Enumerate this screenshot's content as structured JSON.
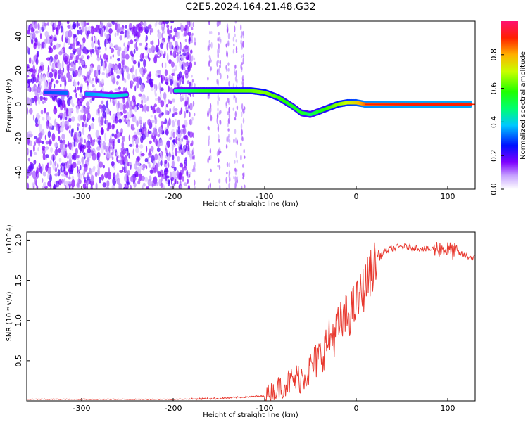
{
  "title": "C2E5.2024.164.21.48.G32",
  "chart_data": [
    {
      "type": "heatmap",
      "xlabel": "Height of straight line (km)",
      "ylabel": "Frequency (Hz)",
      "xlim": [
        -360,
        130
      ],
      "ylim": [
        -50,
        49
      ],
      "xticks": [
        -300,
        -200,
        -100,
        0,
        100
      ],
      "yticks": [
        -40,
        -20,
        0,
        20,
        40
      ],
      "colorbar": {
        "label": "Normalized spectral amplitude",
        "range": [
          0,
          1
        ],
        "ticks": [
          "0.0",
          "0.2",
          "0.4",
          "0.6",
          "0.8"
        ]
      },
      "trace": {
        "x": [
          -335,
          -290,
          -265,
          -195,
          -170,
          -140,
          -115,
          -100,
          -85,
          -70,
          -60,
          -50,
          -40,
          -30,
          -20,
          -10,
          0,
          10,
          60,
          125
        ],
        "y": [
          7,
          6,
          5,
          8,
          8,
          8,
          8,
          7,
          4,
          -1,
          -5,
          -6,
          -4,
          -2,
          0,
          1,
          1,
          0,
          0,
          0
        ],
        "level": [
          0.3,
          0.35,
          0.4,
          0.45,
          0.55,
          0.6,
          0.62,
          0.65,
          0.6,
          0.55,
          0.55,
          0.5,
          0.55,
          0.6,
          0.65,
          0.7,
          0.75,
          0.85,
          0.9,
          0.9
        ]
      },
      "noise_region_x": [
        -360,
        -180
      ]
    },
    {
      "type": "line",
      "xlabel": "Height of straight line (km)",
      "ylabel": "SNR (10 * v/v)",
      "y_multiplier": "(x10^4)",
      "xlim": [
        -360,
        130
      ],
      "ylim": [
        0,
        2.1
      ],
      "xticks": [
        -300,
        -200,
        -100,
        0,
        100
      ],
      "yticks": [
        "0.5",
        "1.0",
        "1.5",
        "2.0"
      ],
      "series": [
        {
          "color": "#e8392f",
          "x": [
            -360,
            -300,
            -250,
            -200,
            -150,
            -120,
            -100,
            -90,
            -80,
            -70,
            -60,
            -50,
            -40,
            -30,
            -20,
            -10,
            0,
            10,
            20,
            30,
            40,
            50,
            60,
            70,
            80,
            90,
            100,
            110,
            120,
            130
          ],
          "y": [
            0.02,
            0.02,
            0.02,
            0.02,
            0.03,
            0.05,
            0.06,
            0.12,
            0.2,
            0.25,
            0.3,
            0.4,
            0.55,
            0.75,
            0.9,
            1.05,
            1.2,
            1.45,
            1.7,
            1.85,
            1.9,
            1.92,
            1.91,
            1.9,
            1.88,
            1.9,
            1.88,
            1.85,
            1.8,
            1.78
          ]
        }
      ]
    }
  ]
}
